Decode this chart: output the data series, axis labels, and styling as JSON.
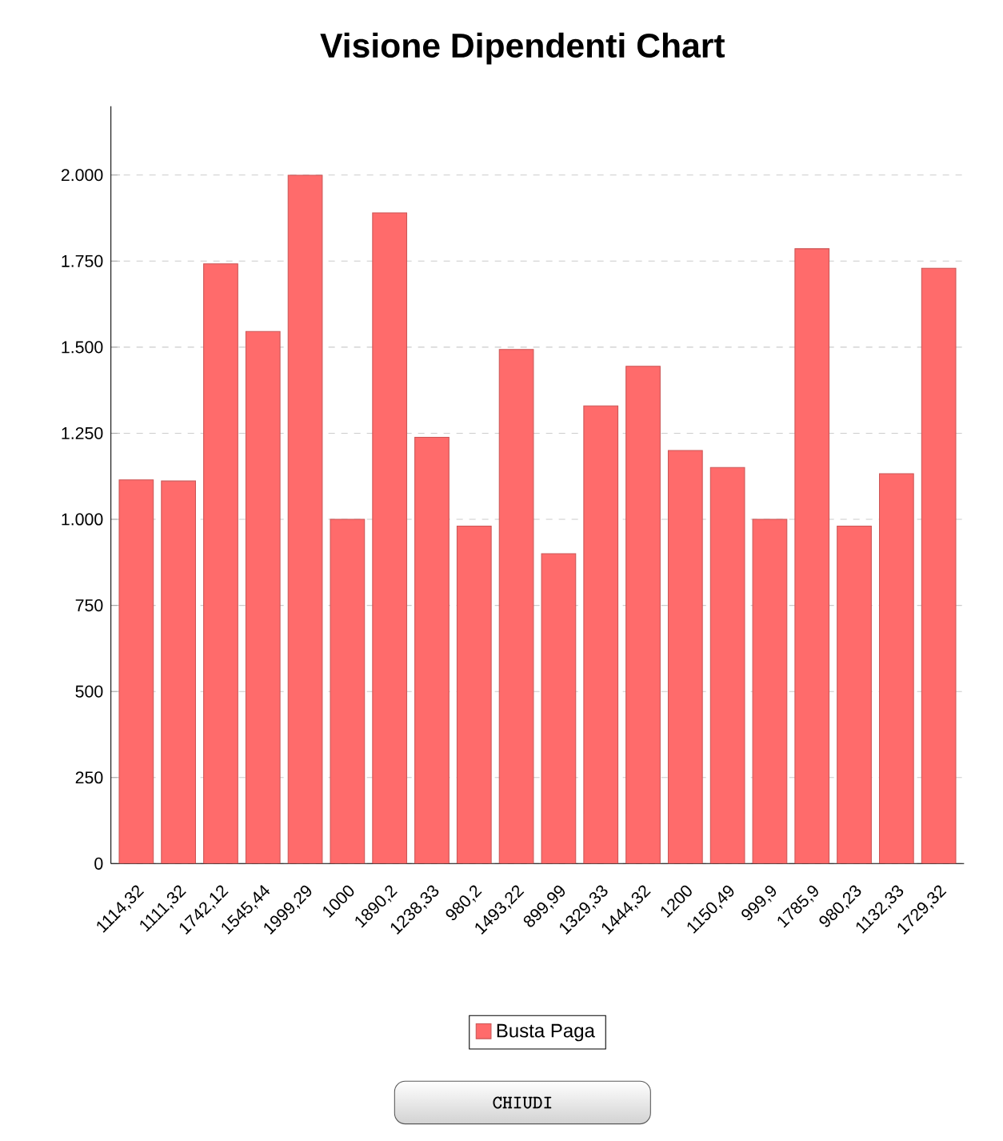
{
  "chart_data": {
    "type": "bar",
    "title": "Visione Dipendenti Chart",
    "categories": [
      "1114,32",
      "1111,32",
      "1742,12",
      "1545,44",
      "1999,29",
      "1000",
      "1890,2",
      "1238,33",
      "980,2",
      "1493,22",
      "899,99",
      "1329,33",
      "1444,32",
      "1200",
      "1150,49",
      "999,9",
      "1785,9",
      "980,23",
      "1132,33",
      "1729,32"
    ],
    "series": [
      {
        "name": "Busta Paga",
        "color": "#ff6b6b",
        "values": [
          1114.32,
          1111.32,
          1742.12,
          1545.44,
          1999.29,
          1000,
          1890.2,
          1238.33,
          980.2,
          1493.22,
          899.99,
          1329.33,
          1444.32,
          1200,
          1150.49,
          999.9,
          1785.9,
          980.23,
          1132.33,
          1729.32
        ]
      }
    ],
    "ylim": [
      0,
      2200
    ],
    "yticks": [
      0,
      250,
      500,
      750,
      {
        "value": 1000,
        "label": "1.000"
      },
      {
        "value": 1250,
        "label": "1.250"
      },
      {
        "value": 1500,
        "label": "1.500"
      },
      {
        "value": 1750,
        "label": "1.750"
      },
      {
        "value": 2000,
        "label": "2.000"
      }
    ],
    "grid": "y",
    "legend": "bottom",
    "annotations": [
      "CHIUDI"
    ]
  }
}
